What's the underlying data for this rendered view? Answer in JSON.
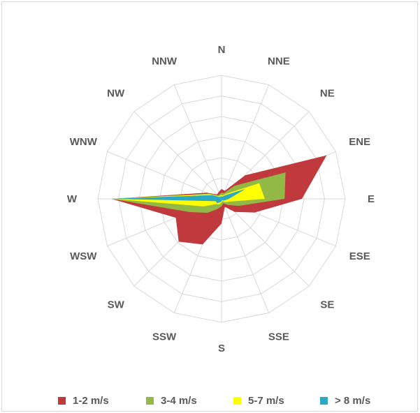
{
  "chart_data": {
    "type": "radar",
    "title": "",
    "directions": [
      "N",
      "NNE",
      "NE",
      "ENE",
      "E",
      "ESE",
      "SE",
      "SSE",
      "S",
      "SSW",
      "SW",
      "WSW",
      "W",
      "WNW",
      "NW",
      "NNW"
    ],
    "rmax": 10,
    "grid_rings": 6,
    "legend_position": "bottom",
    "series": [
      {
        "name": "1-2 m/s",
        "color": "#c0393d",
        "values": [
          0.8,
          0.7,
          2.7,
          9.2,
          6.5,
          2.9,
          1.5,
          0.7,
          2.0,
          4.0,
          4.9,
          4.0,
          8.9,
          1.3,
          0.5,
          0.6
        ]
      },
      {
        "name": "3-4 m/s",
        "color": "#92b845",
        "values": [
          0.5,
          0.5,
          1.5,
          5.6,
          5.1,
          1.5,
          0.7,
          0.4,
          0.6,
          0.9,
          1.6,
          2.8,
          8.9,
          1.1,
          0.4,
          0.4
        ]
      },
      {
        "name": "5-7 m/s",
        "color": "#ffff00",
        "values": [
          0.3,
          0.3,
          0.6,
          3.3,
          3.5,
          0.6,
          0.4,
          0.2,
          0.3,
          0.5,
          0.6,
          1.6,
          8.9,
          1.0,
          0.3,
          0.3
        ]
      },
      {
        "name": "> 8 m/s",
        "color": "#2aa8c4",
        "values": [
          0.2,
          0.2,
          0.4,
          2.1,
          0.6,
          0.3,
          0.2,
          0.1,
          0.2,
          0.3,
          0.5,
          0.5,
          8.9,
          0.8,
          0.2,
          0.2
        ]
      }
    ]
  }
}
